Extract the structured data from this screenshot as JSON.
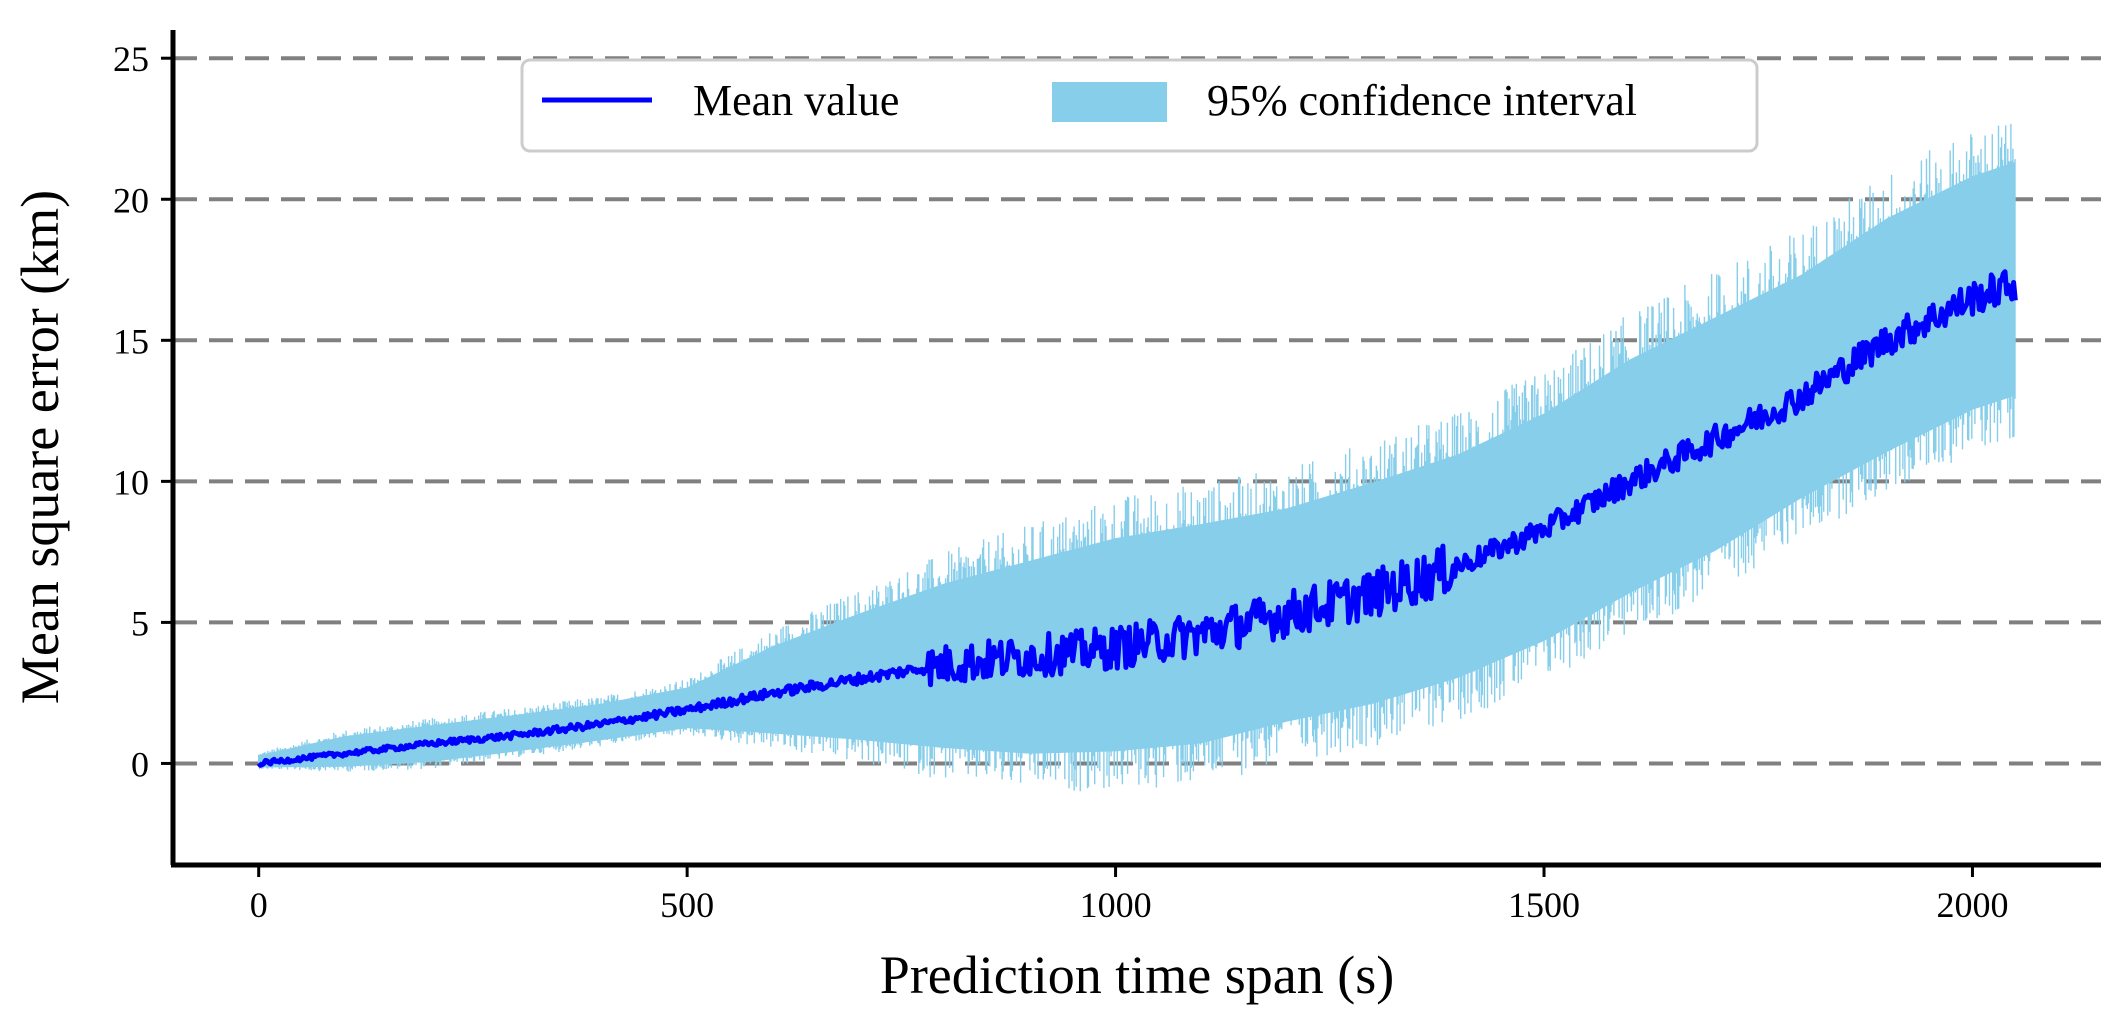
{
  "chart_data": {
    "type": "line",
    "title": "",
    "xlabel": "Prediction time span (s)",
    "ylabel": "Mean square error (km)",
    "xlim": [
      -100,
      2150
    ],
    "ylim": [
      -3.6,
      26
    ],
    "xticks": [
      0,
      500,
      1000,
      1500,
      2000
    ],
    "xtick_labels": [
      "0",
      "500",
      "1000",
      "1500",
      "2000"
    ],
    "yticks": [
      0,
      5,
      10,
      15,
      20,
      25
    ],
    "ytick_labels": [
      "0",
      "5",
      "10",
      "15",
      "20",
      "25"
    ],
    "grid": {
      "axis": "y",
      "style": "dashed",
      "color": "#808080"
    },
    "legend": {
      "placement": "top-center",
      "entries": [
        {
          "label": "Mean value",
          "kind": "line",
          "color": "#0000ff"
        },
        {
          "label": "95% confidence interval",
          "kind": "patch",
          "color": "#87ceeb"
        }
      ]
    },
    "series": [
      {
        "name": "Mean value",
        "color": "#0000ff",
        "x": [
          0,
          100,
          200,
          300,
          400,
          500,
          600,
          700,
          800,
          900,
          1000,
          1100,
          1200,
          1300,
          1400,
          1500,
          1600,
          1700,
          1800,
          1900,
          2000,
          2050
        ],
        "values": [
          0,
          0.35,
          0.7,
          1.0,
          1.4,
          1.9,
          2.5,
          3.0,
          3.5,
          3.8,
          4.1,
          4.6,
          5.3,
          6.0,
          7.0,
          8.3,
          10.0,
          11.5,
          13.0,
          15.0,
          16.5,
          17.0
        ]
      },
      {
        "name": "95% confidence interval",
        "color": "#87ceeb",
        "x": [
          0,
          100,
          200,
          300,
          400,
          500,
          600,
          700,
          800,
          900,
          1000,
          1100,
          1200,
          1300,
          1400,
          1500,
          1600,
          1700,
          1800,
          1900,
          2000,
          2050
        ],
        "lower": [
          -0.2,
          -0.3,
          -0.2,
          0.2,
          0.6,
          1.0,
          0.5,
          0.0,
          -0.6,
          -1.0,
          -1.0,
          -0.8,
          0.0,
          0.6,
          1.5,
          2.8,
          4.5,
          6.0,
          8.0,
          9.5,
          11.0,
          11.5
        ],
        "upper": [
          0.4,
          1.2,
          1.6,
          2.0,
          2.4,
          3.0,
          4.8,
          6.2,
          7.5,
          8.5,
          9.5,
          10.0,
          10.5,
          11.5,
          12.5,
          14.0,
          16.0,
          17.5,
          19.0,
          21.0,
          22.5,
          23.0
        ]
      }
    ]
  }
}
